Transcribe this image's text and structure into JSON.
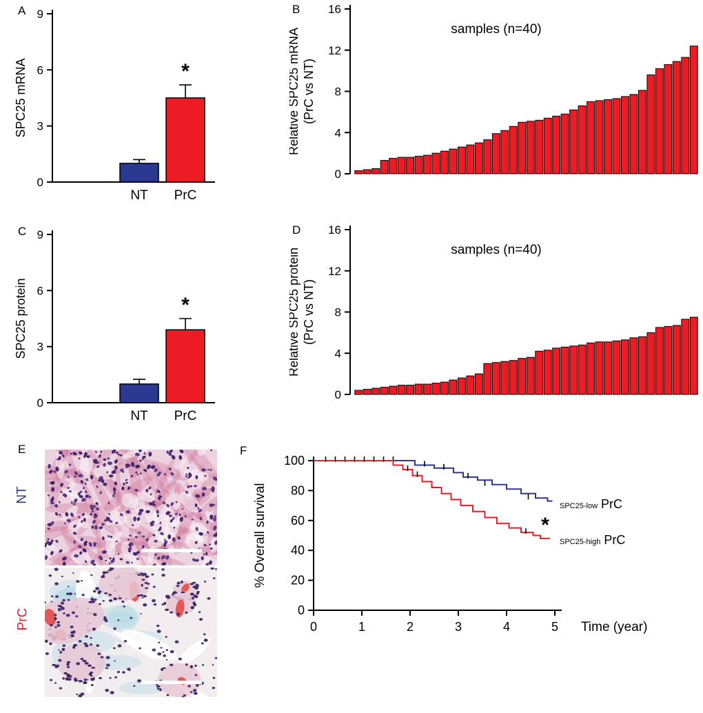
{
  "colors": {
    "red": "#ed1c24",
    "blue": "#2b3990",
    "black": "#000000"
  },
  "panel_labels": {
    "A": "A",
    "B": "B",
    "C": "C",
    "D": "D",
    "E": "E",
    "F": "F"
  },
  "histology": {
    "nt_label": "NT",
    "prc_label": "PrC",
    "images": [
      {
        "label": "NT",
        "label_color": "#2b3990",
        "stain": "he-stain",
        "scale_bar": true
      },
      {
        "label": "PrC",
        "label_color": "#ed1c24",
        "stain": "ihc-stain",
        "scale_bar": true
      }
    ]
  },
  "chart_data": [
    {
      "id": "A",
      "type": "bar",
      "ylabel": "SPC25 mRNA",
      "categories": [
        "NT",
        "PrC"
      ],
      "values": [
        1.0,
        4.5
      ],
      "errors": [
        0.2,
        0.7
      ],
      "colors": [
        "#2b3990",
        "#ed1c24"
      ],
      "ylim": [
        0,
        9
      ],
      "yticks": [
        0,
        3,
        6,
        9
      ],
      "sig_label": "*",
      "sig_on": 1
    },
    {
      "id": "B",
      "type": "waterfall",
      "ylabel": "Relative SPC25 mRNA",
      "ylabel2": "(PrC vs NT)",
      "note": "samples (n=40)",
      "color": "#ed1c24",
      "ylim": [
        0,
        16
      ],
      "yticks": [
        0,
        4,
        8,
        12,
        16
      ],
      "values": [
        0.3,
        0.4,
        0.5,
        1.3,
        1.5,
        1.6,
        1.6,
        1.7,
        1.8,
        2.0,
        2.2,
        2.4,
        2.6,
        2.8,
        3.0,
        3.3,
        3.9,
        4.2,
        4.6,
        5.0,
        5.1,
        5.2,
        5.4,
        5.6,
        5.8,
        6.2,
        6.6,
        7.0,
        7.1,
        7.2,
        7.3,
        7.5,
        7.7,
        8.1,
        9.6,
        10.2,
        10.6,
        10.9,
        11.3,
        12.4
      ]
    },
    {
      "id": "C",
      "type": "bar",
      "ylabel": "SPC25 protein",
      "categories": [
        "NT",
        "PrC"
      ],
      "values": [
        1.0,
        3.9
      ],
      "errors": [
        0.25,
        0.6
      ],
      "colors": [
        "#2b3990",
        "#ed1c24"
      ],
      "ylim": [
        0,
        9
      ],
      "yticks": [
        0,
        3,
        6,
        9
      ],
      "sig_label": "*",
      "sig_on": 1
    },
    {
      "id": "D",
      "type": "waterfall",
      "ylabel": "Relative SPC25 protein",
      "ylabel2": "(PrC vs NT)",
      "note": "samples (n=40)",
      "color": "#ed1c24",
      "ylim": [
        0,
        16
      ],
      "yticks": [
        0,
        4,
        8,
        12,
        16
      ],
      "values": [
        0.4,
        0.5,
        0.6,
        0.7,
        0.8,
        0.9,
        0.9,
        1.0,
        1.0,
        1.1,
        1.2,
        1.4,
        1.6,
        1.8,
        2.0,
        3.0,
        3.1,
        3.2,
        3.3,
        3.5,
        3.6,
        4.2,
        4.3,
        4.5,
        4.6,
        4.7,
        4.8,
        5.0,
        5.1,
        5.1,
        5.2,
        5.3,
        5.5,
        5.6,
        6.0,
        6.5,
        6.6,
        6.7,
        7.3,
        7.5
      ]
    },
    {
      "id": "F",
      "type": "km",
      "ylabel": "% Overall survival",
      "xlabel": "Time (year)",
      "xlim": [
        0,
        5
      ],
      "ylim": [
        0,
        100
      ],
      "xticks": [
        0,
        1,
        2,
        3,
        4,
        5
      ],
      "yticks": [
        0,
        20,
        40,
        60,
        80,
        100
      ],
      "sig_label": "*",
      "series": [
        {
          "name_small": "SPC25-low",
          "name_big": "PrC",
          "color": "#2b3990",
          "x": [
            0,
            1.85,
            2.1,
            2.5,
            2.9,
            3.1,
            3.4,
            3.7,
            4.0,
            4.3,
            4.6,
            4.85,
            4.95
          ],
          "y": [
            100,
            100,
            97,
            95,
            92,
            89,
            87,
            84,
            81,
            78,
            75,
            73,
            73
          ],
          "censors": [
            [
              0.25,
              100
            ],
            [
              0.45,
              100
            ],
            [
              0.65,
              100
            ],
            [
              0.85,
              100
            ],
            [
              1.05,
              100
            ],
            [
              1.25,
              100
            ],
            [
              1.45,
              100
            ],
            [
              1.65,
              100
            ],
            [
              2.3,
              97
            ],
            [
              2.7,
              95
            ],
            [
              3.2,
              89
            ],
            [
              3.55,
              84
            ],
            [
              4.45,
              75
            ]
          ]
        },
        {
          "name_small": "SPC25-high",
          "name_big": "PrC",
          "color": "#ed1c24",
          "x": [
            0,
            1.45,
            1.65,
            1.85,
            2.05,
            2.25,
            2.45,
            2.65,
            2.85,
            3.05,
            3.3,
            3.55,
            3.8,
            4.05,
            4.3,
            4.55,
            4.7,
            4.9
          ],
          "y": [
            100,
            100,
            97,
            94,
            90,
            86,
            82,
            78,
            74,
            70,
            66,
            62,
            58,
            55,
            52,
            50,
            48,
            48
          ],
          "censors": [
            [
              1.95,
              94
            ],
            [
              2.15,
              90
            ],
            [
              4.4,
              52
            ]
          ]
        }
      ]
    }
  ]
}
